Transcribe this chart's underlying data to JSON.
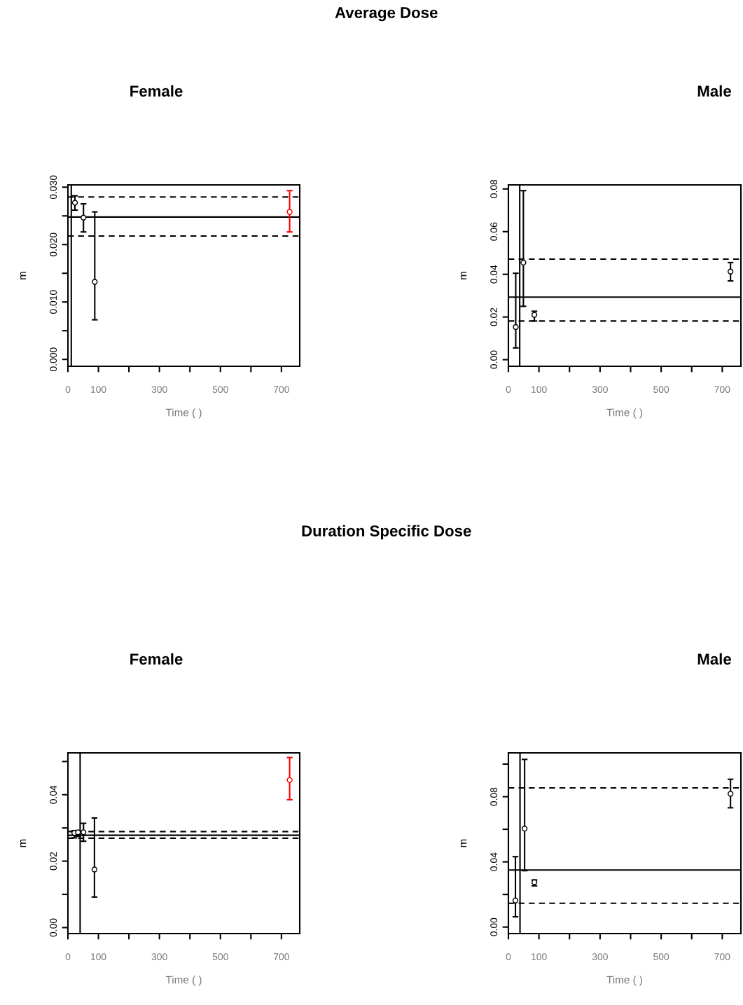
{
  "chart_data": [
    {
      "type": "scatter",
      "title": "Female",
      "xlabel": "Time ( )",
      "ylabel": "m",
      "annotations": [
        "Average Dose"
      ],
      "x": [
        23,
        51,
        88,
        727
      ],
      "values": [
        0.0273,
        0.0247,
        0.0135,
        0.0257
      ],
      "errors": [
        [
          0.026,
          0.0285
        ],
        [
          0.0222,
          0.0271
        ],
        [
          0.0069,
          0.0257
        ],
        [
          0.0222,
          0.0294
        ]
      ],
      "colors": [
        "#000000",
        "#000000",
        "#000000",
        "#ff0000"
      ],
      "marker": "circle",
      "ref_lines": [
        {
          "axis": "y",
          "value": 0.0248,
          "color": "#000000",
          "line_style": "solid"
        },
        {
          "axis": "y",
          "value": 0.0283,
          "color": "#000000",
          "line_style": "dashed"
        },
        {
          "axis": "y",
          "value": 0.0215,
          "color": "#000000",
          "line_style": "dashed"
        },
        {
          "axis": "x",
          "value": 11,
          "color": "#000000",
          "line_style": "solid"
        }
      ],
      "xlim": [
        0,
        760
      ],
      "ylim": [
        -0.0012,
        0.0304
      ],
      "xticks": [
        0,
        100,
        {
          "value": 200,
          "label": null
        },
        300,
        {
          "value": 400,
          "label": null
        },
        500,
        {
          "value": 600,
          "label": null
        },
        700
      ],
      "yticks": [
        {
          "value": 0.0,
          "label": "0.000"
        },
        {
          "value": 0.005,
          "label": null
        },
        {
          "value": 0.01,
          "label": "0.010"
        },
        {
          "value": 0.015,
          "label": null
        },
        {
          "value": 0.02,
          "label": "0.020"
        },
        {
          "value": 0.025,
          "label": null
        },
        {
          "value": 0.03,
          "label": "0.030"
        }
      ],
      "grid": false,
      "legend": false
    },
    {
      "type": "scatter",
      "title": "Male",
      "xlabel": "Time ( )",
      "ylabel": "m",
      "x": [
        24,
        49,
        85,
        727
      ],
      "values": [
        0.0153,
        0.0455,
        0.021,
        0.0413
      ],
      "errors": [
        [
          0.0055,
          0.0405
        ],
        [
          0.025,
          0.0792
        ],
        [
          0.0181,
          0.0227
        ],
        [
          0.0369,
          0.0455
        ]
      ],
      "colors": [
        "#000000",
        "#000000",
        "#000000",
        "#000000"
      ],
      "marker": "circle",
      "ref_lines": [
        {
          "axis": "y",
          "value": 0.0293,
          "color": "#000000",
          "line_style": "solid"
        },
        {
          "axis": "y",
          "value": 0.0471,
          "color": "#000000",
          "line_style": "dashed"
        },
        {
          "axis": "y",
          "value": 0.0181,
          "color": "#000000",
          "line_style": "dashed"
        },
        {
          "axis": "x",
          "value": 37,
          "color": "#000000",
          "line_style": "solid"
        }
      ],
      "xlim": [
        0,
        761
      ],
      "ylim": [
        -0.0031,
        0.0819
      ],
      "xticks": [
        0,
        100,
        {
          "value": 200,
          "label": null
        },
        300,
        {
          "value": 400,
          "label": null
        },
        500,
        {
          "value": 600,
          "label": null
        },
        700
      ],
      "yticks": [
        {
          "value": 0.0,
          "label": "0.00"
        },
        {
          "value": 0.02,
          "label": "0.02"
        },
        {
          "value": 0.04,
          "label": "0.04"
        },
        {
          "value": 0.06,
          "label": "0.06"
        },
        {
          "value": 0.08,
          "label": "0.08"
        }
      ],
      "grid": false,
      "legend": false
    },
    {
      "type": "scatter",
      "title": "Female",
      "xlabel": "Time ( )",
      "ylabel": "m",
      "annotations": [
        "Duration Specific Dose"
      ],
      "x": [
        21,
        33,
        51,
        87,
        727
      ],
      "values": [
        0.0285,
        0.0287,
        0.0287,
        0.0175,
        0.0444
      ],
      "errors": [
        [
          0.027,
          0.0292
        ],
        [
          0.0275,
          0.0292
        ],
        [
          0.026,
          0.0314
        ],
        [
          0.0092,
          0.033
        ],
        [
          0.0385,
          0.0512
        ]
      ],
      "colors": [
        "#000000",
        "#000000",
        "#000000",
        "#000000",
        "#ff0000"
      ],
      "marker": "circle",
      "ref_lines": [
        {
          "axis": "y",
          "value": 0.0278,
          "color": "#000000",
          "line_style": "solid"
        },
        {
          "axis": "y",
          "value": 0.0289,
          "color": "#000000",
          "line_style": "dashed"
        },
        {
          "axis": "y",
          "value": 0.0269,
          "color": "#000000",
          "line_style": "dashed"
        },
        {
          "axis": "x",
          "value": 40,
          "color": "#000000",
          "line_style": "solid"
        }
      ],
      "xlim": [
        0,
        760
      ],
      "ylim": [
        -0.0018,
        0.0526
      ],
      "xticks": [
        0,
        100,
        {
          "value": 200,
          "label": null
        },
        300,
        {
          "value": 400,
          "label": null
        },
        500,
        {
          "value": 600,
          "label": null
        },
        700
      ],
      "yticks": [
        {
          "value": 0.0,
          "label": "0.00"
        },
        {
          "value": 0.01,
          "label": null
        },
        {
          "value": 0.02,
          "label": "0.02"
        },
        {
          "value": 0.03,
          "label": null
        },
        {
          "value": 0.04,
          "label": "0.04"
        },
        {
          "value": 0.05,
          "label": null
        }
      ],
      "grid": false,
      "legend": false
    },
    {
      "type": "scatter",
      "title": "Male",
      "xlabel": "Time ( )",
      "ylabel": "m",
      "x": [
        23,
        53,
        85,
        727
      ],
      "values": [
        0.0163,
        0.0604,
        0.0275,
        0.0818
      ],
      "errors": [
        [
          0.0063,
          0.0432
        ],
        [
          0.0346,
          0.1029
        ],
        [
          0.0253,
          0.0289
        ],
        [
          0.0732,
          0.0907
        ]
      ],
      "colors": [
        "#000000",
        "#000000",
        "#000000",
        "#000000"
      ],
      "marker": "circle",
      "ref_lines": [
        {
          "axis": "y",
          "value": 0.035,
          "color": "#000000",
          "line_style": "solid"
        },
        {
          "axis": "y",
          "value": 0.0854,
          "color": "#000000",
          "line_style": "dashed"
        },
        {
          "axis": "y",
          "value": 0.0146,
          "color": "#000000",
          "line_style": "dashed"
        },
        {
          "axis": "x",
          "value": 38,
          "color": "#000000",
          "line_style": "solid"
        }
      ],
      "xlim": [
        0,
        761
      ],
      "ylim": [
        -0.004,
        0.1069
      ],
      "xticks": [
        0,
        100,
        {
          "value": 200,
          "label": null
        },
        300,
        {
          "value": 400,
          "label": null
        },
        500,
        {
          "value": 600,
          "label": null
        },
        700
      ],
      "yticks": [
        {
          "value": 0.0,
          "label": "0.00"
        },
        {
          "value": 0.02,
          "label": null
        },
        {
          "value": 0.04,
          "label": "0.04"
        },
        {
          "value": 0.06,
          "label": null
        },
        {
          "value": 0.08,
          "label": "0.08"
        },
        {
          "value": 0.1,
          "label": null
        }
      ],
      "grid": false,
      "legend": false
    }
  ]
}
